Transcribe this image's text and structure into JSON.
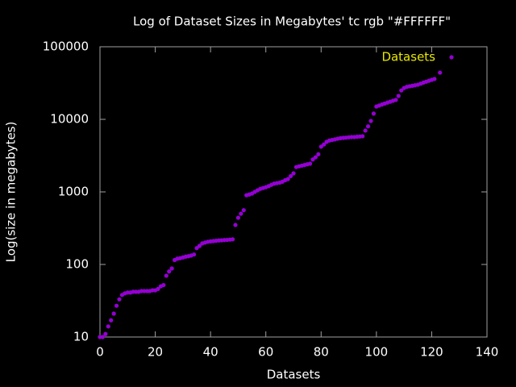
{
  "chart_data": {
    "type": "scatter",
    "title": "Log of Dataset Sizes in Megabytes' tc rgb \"#FFFFFF\"",
    "x_label": "Datasets",
    "y_label": "Log(size in megabytes)",
    "xlim": [
      0,
      140
    ],
    "xticks": [
      0,
      20,
      40,
      60,
      80,
      100,
      120,
      140
    ],
    "ylim": [
      10,
      100000
    ],
    "yticks": [
      10,
      100,
      1000,
      10000,
      100000
    ],
    "y_scale": "log",
    "legend_position": "top-right",
    "legend_color": "#e8e800",
    "series": [
      {
        "name": "Datasets",
        "color": "#9400d3",
        "x": [
          0,
          1,
          2,
          3,
          4,
          5,
          6,
          7,
          8,
          9,
          10,
          11,
          12,
          13,
          14,
          15,
          16,
          17,
          18,
          19,
          20,
          21,
          22,
          23,
          24,
          25,
          26,
          27,
          28,
          29,
          30,
          31,
          32,
          33,
          34,
          35,
          36,
          37,
          38,
          39,
          40,
          41,
          42,
          43,
          44,
          45,
          46,
          47,
          48,
          49,
          50,
          51,
          52,
          53,
          54,
          55,
          56,
          57,
          58,
          59,
          60,
          61,
          62,
          63,
          64,
          65,
          66,
          67,
          68,
          69,
          70,
          71,
          72,
          73,
          74,
          75,
          76,
          77,
          78,
          79,
          80,
          81,
          82,
          83,
          84,
          85,
          86,
          87,
          88,
          89,
          90,
          91,
          92,
          93,
          94,
          95,
          96,
          97,
          98,
          99,
          100,
          101,
          102,
          103,
          104,
          105,
          106,
          107,
          108,
          109,
          110,
          111,
          112,
          113,
          114,
          115,
          116,
          117,
          118,
          119,
          120,
          121,
          123
        ],
        "values": [
          10,
          10,
          11,
          14,
          17,
          21,
          27,
          33,
          38,
          40,
          41,
          41,
          42,
          42,
          42,
          43,
          43,
          43,
          43,
          44,
          44,
          46,
          50,
          52,
          70,
          80,
          88,
          115,
          120,
          122,
          125,
          128,
          130,
          133,
          137,
          168,
          180,
          195,
          200,
          205,
          208,
          210,
          212,
          214,
          215,
          217,
          218,
          220,
          222,
          350,
          440,
          500,
          560,
          900,
          920,
          950,
          1000,
          1050,
          1100,
          1130,
          1160,
          1200,
          1250,
          1300,
          1320,
          1340,
          1380,
          1450,
          1500,
          1650,
          1800,
          2200,
          2250,
          2300,
          2350,
          2400,
          2450,
          2800,
          3000,
          3300,
          4200,
          4500,
          4900,
          5100,
          5200,
          5300,
          5400,
          5500,
          5550,
          5600,
          5650,
          5700,
          5700,
          5750,
          5800,
          5850,
          7000,
          8000,
          9500,
          12000,
          15000,
          15500,
          16000,
          16500,
          17000,
          17500,
          18000,
          18500,
          21000,
          25000,
          27000,
          28000,
          28500,
          29000,
          29500,
          30000,
          31000,
          32000,
          33000,
          34000,
          35000,
          36000,
          44000
        ]
      }
    ]
  }
}
